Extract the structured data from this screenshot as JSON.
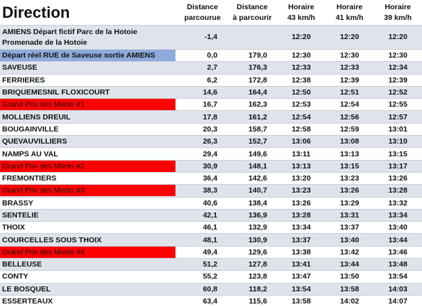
{
  "header": {
    "title": "Direction",
    "columns": [
      [
        "Distance",
        "parcourue"
      ],
      [
        "Distance",
        "à parcourir"
      ],
      [
        "Horaire",
        "43 km/h"
      ],
      [
        "Horaire",
        "41 km/h"
      ],
      [
        "Horaire",
        "39 km/h"
      ]
    ]
  },
  "rows": [
    {
      "place": [
        "AMIENS Départ fictif Parc de la Hotoie",
        "Promenade de la Hotoie"
      ],
      "values": [
        "-1,4",
        null,
        "12:20",
        "12:20",
        "12:20"
      ]
    },
    {
      "place": [
        "Départ réel  RUE de Saveuse sortie AMIENS"
      ],
      "values": [
        "0,0",
        "179,0",
        "12:30",
        "12:30",
        "12:30"
      ],
      "highlight": "#8eaadb"
    },
    {
      "place": [
        "SAVEUSE"
      ],
      "values": [
        "2,7",
        "176,3",
        "12:33",
        "12:33",
        "12:34"
      ]
    },
    {
      "place": [
        "FERRIERES"
      ],
      "values": [
        "6,2",
        "172,8",
        "12:38",
        "12:39",
        "12:39"
      ]
    },
    {
      "place": [
        "BRIQUEMESNIL FLOXICOURT"
      ],
      "values": [
        "14,6",
        "164,4",
        "12:50",
        "12:51",
        "12:52"
      ]
    },
    {
      "place": [
        "Grand Prix des Monts #1"
      ],
      "values": [
        "16,7",
        "162,3",
        "12:53",
        "12:54",
        "12:55"
      ],
      "highlight": "#ff0000"
    },
    {
      "place": [
        "MOLLIENS DREUIL"
      ],
      "values": [
        "17,8",
        "161,2",
        "12:54",
        "12:56",
        "12:57"
      ]
    },
    {
      "place": [
        "BOUGAINVILLE"
      ],
      "values": [
        "20,3",
        "158,7",
        "12:58",
        "12:59",
        "13:01"
      ]
    },
    {
      "place": [
        "QUEVAUVILLIERS"
      ],
      "values": [
        "26,3",
        "152,7",
        "13:06",
        "13:08",
        "13:10"
      ]
    },
    {
      "place": [
        "NAMPS AU VAL"
      ],
      "values": [
        "29,4",
        "149,6",
        "13:11",
        "13:13",
        "13:15"
      ]
    },
    {
      "place": [
        "Grand Prix des Monts #2"
      ],
      "values": [
        "30,9",
        "148,1",
        "13:13",
        "13:15",
        "13:17"
      ],
      "highlight": "#ff0000"
    },
    {
      "place": [
        "FREMONTIERS"
      ],
      "values": [
        "36,4",
        "142,6",
        "13:20",
        "13:23",
        "13:26"
      ]
    },
    {
      "place": [
        "Grand Prix des Monts #3"
      ],
      "values": [
        "38,3",
        "140,7",
        "13:23",
        "13:26",
        "13:28"
      ],
      "highlight": "#ff0000"
    },
    {
      "place": [
        "BRASSY"
      ],
      "values": [
        "40,6",
        "138,4",
        "13:26",
        "13:29",
        "13:32"
      ]
    },
    {
      "place": [
        "SENTELIE"
      ],
      "values": [
        "42,1",
        "136,9",
        "13:28",
        "13:31",
        "13:34"
      ]
    },
    {
      "place": [
        "THOIX"
      ],
      "values": [
        "46,1",
        "132,9",
        "13:34",
        "13:37",
        "13:40"
      ]
    },
    {
      "place": [
        "COURCELLES SOUS THOIX"
      ],
      "values": [
        "48,1",
        "130,9",
        "13:37",
        "13:40",
        "13:44"
      ]
    },
    {
      "place": [
        "Grand Prix des Monts #4"
      ],
      "values": [
        "49,4",
        "129,6",
        "13:38",
        "13:42",
        "13:46"
      ],
      "highlight": "#ff0000"
    },
    {
      "place": [
        "BELLEUSE"
      ],
      "values": [
        "51,2",
        "127,8",
        "13:41",
        "13:44",
        "13:48"
      ]
    },
    {
      "place": [
        "CONTY"
      ],
      "values": [
        "55,2",
        "123,8",
        "13:47",
        "13:50",
        "13:54"
      ]
    },
    {
      "place": [
        "LE BOSQUEL"
      ],
      "values": [
        "60,8",
        "118,2",
        "13:54",
        "13:58",
        "14:03"
      ]
    },
    {
      "place": [
        "ESSERTEAUX"
      ],
      "values": [
        "63,4",
        "115,6",
        "13:58",
        "14:02",
        "14:07"
      ]
    }
  ]
}
